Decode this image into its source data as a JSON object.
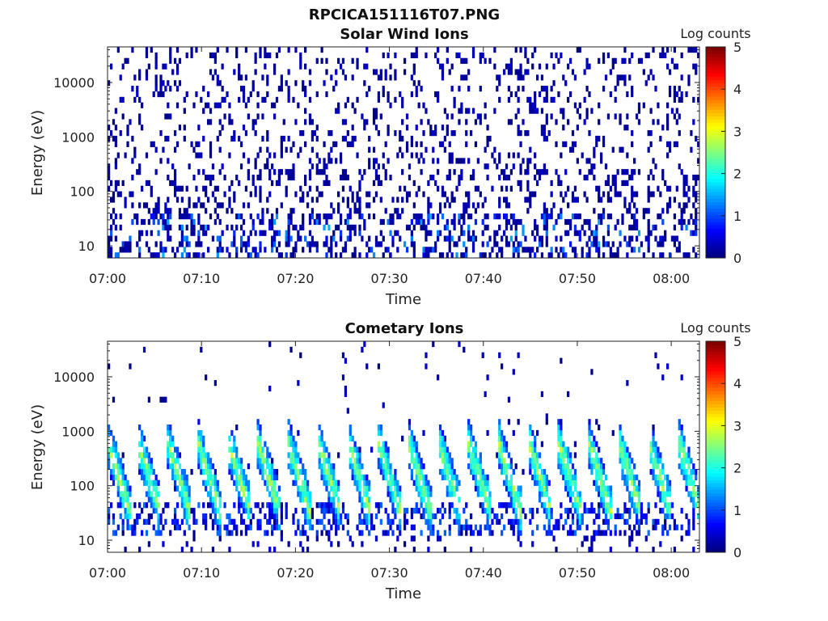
{
  "figure": {
    "suptitle": "RPCICA151116T07.PNG"
  },
  "chart_data": [
    {
      "type": "heatmap",
      "title": "Solar Wind Ions",
      "xlabel": "Time",
      "ylabel": "Energy (eV)",
      "yscale": "log",
      "ylim": [
        6,
        45000
      ],
      "x_ticks": [
        "07:00",
        "07:10",
        "07:20",
        "07:30",
        "07:40",
        "07:50",
        "08:00"
      ],
      "y_ticks": [
        "10",
        "100",
        "1000",
        "10000"
      ],
      "colorbar": {
        "label": "Log counts",
        "min": 0,
        "max": 5,
        "ticks": [
          "0",
          "1",
          "2",
          "3",
          "4",
          "5"
        ],
        "colormap": "jet"
      },
      "time_range_minutes": [
        0,
        63
      ],
      "pattern": "sparse",
      "seed": 11
    },
    {
      "type": "heatmap",
      "title": "Cometary Ions",
      "xlabel": "Time",
      "ylabel": "Energy (eV)",
      "yscale": "log",
      "ylim": [
        6,
        45000
      ],
      "x_ticks": [
        "07:00",
        "07:10",
        "07:20",
        "07:30",
        "07:40",
        "07:50",
        "08:00"
      ],
      "y_ticks": [
        "10",
        "100",
        "1000",
        "10000"
      ],
      "colorbar": {
        "label": "Log counts",
        "min": 0,
        "max": 5,
        "ticks": [
          "0",
          "1",
          "2",
          "3",
          "4",
          "5"
        ],
        "colormap": "jet"
      },
      "time_range_minutes": [
        0,
        63
      ],
      "pattern": "periodic-bursts",
      "burst_period_minutes": 3.2,
      "seed": 29
    }
  ]
}
